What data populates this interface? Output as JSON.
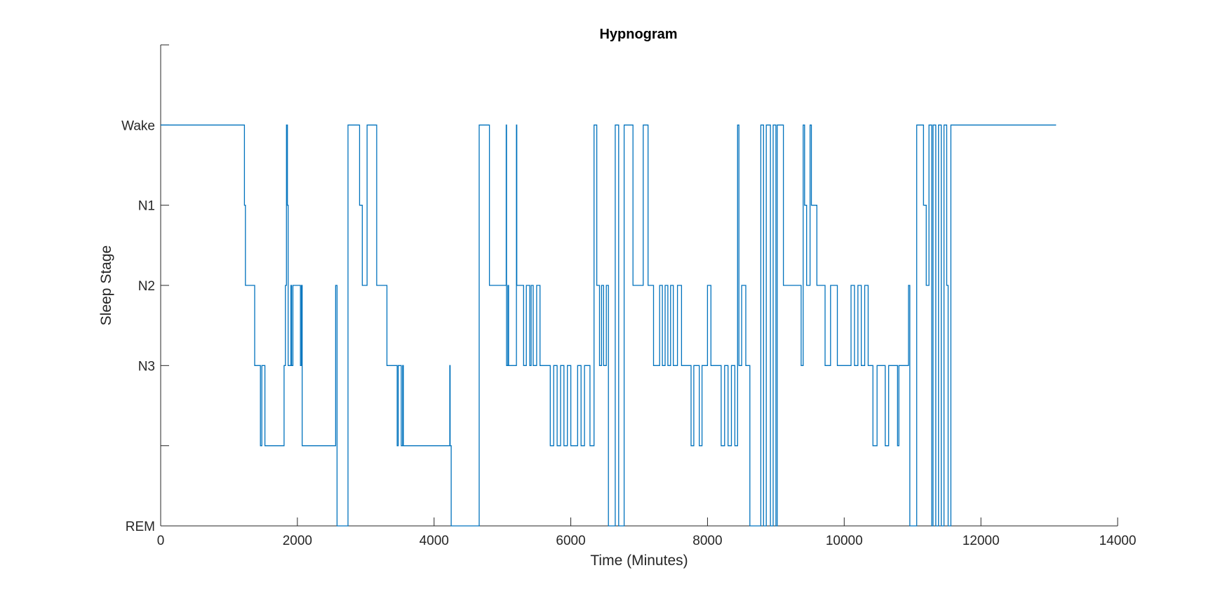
{
  "chart_data": {
    "type": "line",
    "title": "Hypnogram",
    "xlabel": "Time (Minutes)",
    "ylabel": "Sleep Stage",
    "xlim": [
      0,
      14000
    ],
    "ylim": [
      0,
      6
    ],
    "x_ticks": [
      0,
      2000,
      4000,
      6000,
      8000,
      10000,
      12000,
      14000
    ],
    "x_tick_labels": [
      "0",
      "2000",
      "4000",
      "6000",
      "8000",
      "10000",
      "12000",
      "14000"
    ],
    "y_ticks": [
      0,
      1,
      2,
      3,
      4,
      5,
      6
    ],
    "y_tick_labels": [
      "REM",
      "",
      "N3",
      "N2",
      "N1",
      "Wake",
      ""
    ],
    "grid": false,
    "line_color": "#0072BD",
    "series": [
      {
        "step": "post",
        "points": [
          [
            0,
            5
          ],
          [
            1220,
            5
          ],
          [
            1225,
            4
          ],
          [
            1240,
            3
          ],
          [
            1360,
            3
          ],
          [
            1375,
            2
          ],
          [
            1440,
            2
          ],
          [
            1460,
            1
          ],
          [
            1480,
            2
          ],
          [
            1520,
            2
          ],
          [
            1525,
            1
          ],
          [
            1800,
            1
          ],
          [
            1805,
            2
          ],
          [
            1820,
            2
          ],
          [
            1825,
            3
          ],
          [
            1835,
            3
          ],
          [
            1840,
            5
          ],
          [
            1855,
            4
          ],
          [
            1865,
            2
          ],
          [
            1900,
            2
          ],
          [
            1905,
            3
          ],
          [
            1915,
            2
          ],
          [
            1925,
            2
          ],
          [
            1935,
            3
          ],
          [
            2040,
            3
          ],
          [
            2045,
            2
          ],
          [
            2055,
            2
          ],
          [
            2060,
            3
          ],
          [
            2070,
            1
          ],
          [
            2550,
            1
          ],
          [
            2560,
            3
          ],
          [
            2580,
            0
          ],
          [
            2730,
            0
          ],
          [
            2740,
            5
          ],
          [
            2900,
            5
          ],
          [
            2910,
            4
          ],
          [
            2950,
            3
          ],
          [
            3010,
            3
          ],
          [
            3020,
            5
          ],
          [
            3150,
            5
          ],
          [
            3160,
            3
          ],
          [
            3300,
            3
          ],
          [
            3310,
            2
          ],
          [
            3450,
            2
          ],
          [
            3460,
            1
          ],
          [
            3475,
            2
          ],
          [
            3510,
            2
          ],
          [
            3520,
            1
          ],
          [
            3540,
            2
          ],
          [
            3550,
            1
          ],
          [
            4220,
            1
          ],
          [
            4230,
            2
          ],
          [
            4235,
            1
          ],
          [
            4250,
            0
          ],
          [
            4650,
            0
          ],
          [
            4660,
            5
          ],
          [
            4800,
            5
          ],
          [
            4810,
            3
          ],
          [
            5050,
            3
          ],
          [
            5055,
            5
          ],
          [
            5060,
            2
          ],
          [
            5080,
            3
          ],
          [
            5090,
            2
          ],
          [
            5200,
            2
          ],
          [
            5205,
            5
          ],
          [
            5210,
            3
          ],
          [
            5300,
            3
          ],
          [
            5310,
            2
          ],
          [
            5350,
            3
          ],
          [
            5400,
            2
          ],
          [
            5420,
            3
          ],
          [
            5450,
            2
          ],
          [
            5500,
            3
          ],
          [
            5550,
            2
          ],
          [
            5600,
            2
          ],
          [
            5700,
            1
          ],
          [
            5750,
            2
          ],
          [
            5800,
            1
          ],
          [
            5850,
            2
          ],
          [
            5900,
            1
          ],
          [
            5950,
            2
          ],
          [
            6000,
            1
          ],
          [
            6100,
            2
          ],
          [
            6150,
            1
          ],
          [
            6200,
            2
          ],
          [
            6280,
            1
          ],
          [
            6340,
            5
          ],
          [
            6380,
            3
          ],
          [
            6420,
            2
          ],
          [
            6450,
            3
          ],
          [
            6480,
            2
          ],
          [
            6520,
            3
          ],
          [
            6550,
            0
          ],
          [
            6650,
            5
          ],
          [
            6700,
            0
          ],
          [
            6780,
            5
          ],
          [
            6900,
            5
          ],
          [
            6910,
            3
          ],
          [
            7050,
            3
          ],
          [
            7060,
            5
          ],
          [
            7120,
            5
          ],
          [
            7130,
            3
          ],
          [
            7200,
            3
          ],
          [
            7210,
            2
          ],
          [
            7300,
            3
          ],
          [
            7340,
            2
          ],
          [
            7380,
            3
          ],
          [
            7420,
            2
          ],
          [
            7460,
            3
          ],
          [
            7500,
            2
          ],
          [
            7560,
            3
          ],
          [
            7620,
            2
          ],
          [
            7700,
            2
          ],
          [
            7760,
            1
          ],
          [
            7800,
            2
          ],
          [
            7880,
            1
          ],
          [
            7920,
            2
          ],
          [
            8000,
            3
          ],
          [
            8050,
            2
          ],
          [
            8150,
            2
          ],
          [
            8200,
            1
          ],
          [
            8250,
            2
          ],
          [
            8300,
            1
          ],
          [
            8350,
            2
          ],
          [
            8400,
            1
          ],
          [
            8440,
            5
          ],
          [
            8460,
            2
          ],
          [
            8500,
            3
          ],
          [
            8560,
            2
          ],
          [
            8620,
            0
          ],
          [
            8780,
            5
          ],
          [
            8820,
            0
          ],
          [
            8860,
            5
          ],
          [
            8920,
            0
          ],
          [
            8960,
            5
          ],
          [
            9000,
            0
          ],
          [
            9020,
            5
          ],
          [
            9100,
            5
          ],
          [
            9110,
            3
          ],
          [
            9350,
            3
          ],
          [
            9370,
            2
          ],
          [
            9400,
            5
          ],
          [
            9420,
            4
          ],
          [
            9450,
            3
          ],
          [
            9500,
            5
          ],
          [
            9520,
            4
          ],
          [
            9600,
            3
          ],
          [
            9700,
            3
          ],
          [
            9720,
            2
          ],
          [
            9800,
            3
          ],
          [
            9900,
            2
          ],
          [
            10100,
            3
          ],
          [
            10150,
            2
          ],
          [
            10200,
            3
          ],
          [
            10250,
            2
          ],
          [
            10300,
            3
          ],
          [
            10350,
            2
          ],
          [
            10420,
            1
          ],
          [
            10480,
            2
          ],
          [
            10600,
            1
          ],
          [
            10650,
            2
          ],
          [
            10780,
            1
          ],
          [
            10800,
            2
          ],
          [
            10940,
            3
          ],
          [
            10960,
            0
          ],
          [
            11060,
            5
          ],
          [
            11150,
            5
          ],
          [
            11160,
            4
          ],
          [
            11200,
            3
          ],
          [
            11240,
            5
          ],
          [
            11280,
            0
          ],
          [
            11300,
            5
          ],
          [
            11340,
            0
          ],
          [
            11380,
            5
          ],
          [
            11420,
            0
          ],
          [
            11460,
            5
          ],
          [
            11500,
            3
          ],
          [
            11520,
            0
          ],
          [
            11560,
            5
          ],
          [
            13100,
            5
          ]
        ]
      }
    ]
  }
}
